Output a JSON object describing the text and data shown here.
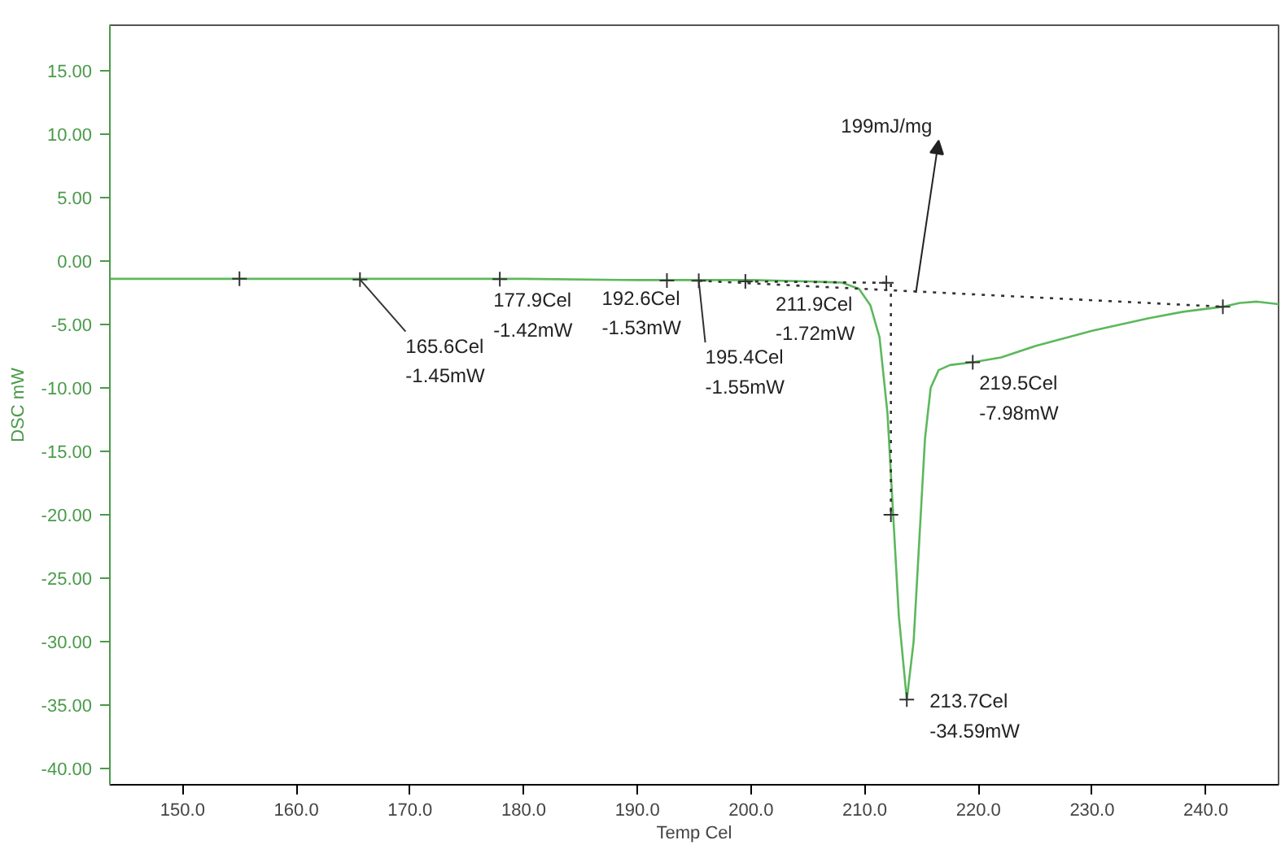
{
  "chart_data": {
    "type": "line",
    "xlabel": "Temp Cel",
    "ylabel": "DSC mW",
    "xlim": [
      143.6,
      246.4
    ],
    "ylim": [
      -41.3,
      18.6
    ],
    "xticks": [
      {
        "value": 150,
        "label": "150.0"
      },
      {
        "value": 160,
        "label": "160.0"
      },
      {
        "value": 170,
        "label": "170.0"
      },
      {
        "value": 180,
        "label": "180.0"
      },
      {
        "value": 190,
        "label": "190.0"
      },
      {
        "value": 200,
        "label": "200.0"
      },
      {
        "value": 210,
        "label": "210.0"
      },
      {
        "value": 220,
        "label": "220.0"
      },
      {
        "value": 230,
        "label": "230.0"
      },
      {
        "value": 240,
        "label": "240.0"
      }
    ],
    "yticks": [
      {
        "value": 15,
        "label": "15.00"
      },
      {
        "value": 10,
        "label": "10.00"
      },
      {
        "value": 5,
        "label": "5.00"
      },
      {
        "value": 0,
        "label": "0.00"
      },
      {
        "value": -5,
        "label": "-5.00"
      },
      {
        "value": -10,
        "label": "-10.00"
      },
      {
        "value": -15,
        "label": "-15.00"
      },
      {
        "value": -20,
        "label": "-20.00"
      },
      {
        "value": -25,
        "label": "-25.00"
      },
      {
        "value": -30,
        "label": "-30.00"
      },
      {
        "value": -35,
        "label": "-35.00"
      },
      {
        "value": -40,
        "label": "-40.00"
      }
    ],
    "grid": false,
    "series": [
      {
        "color": "#5cb85c",
        "x": [
          143.6,
          150,
          160,
          170,
          180,
          190,
          200,
          205,
          208,
          209.5,
          210.5,
          211.3,
          212,
          212.5,
          213,
          213.7,
          214.3,
          214.8,
          215.3,
          215.8,
          216.5,
          217.5,
          219.5,
          222,
          225,
          230,
          235,
          238,
          241.5,
          243,
          244.5,
          246.4
        ],
        "values": [
          -1.4,
          -1.4,
          -1.4,
          -1.4,
          -1.4,
          -1.5,
          -1.5,
          -1.6,
          -1.7,
          -2.2,
          -3.5,
          -6,
          -12,
          -20,
          -28,
          -34.59,
          -30,
          -22,
          -14,
          -10,
          -8.6,
          -8.2,
          -7.98,
          -7.6,
          -6.7,
          -5.5,
          -4.5,
          -4.0,
          -3.6,
          -3.3,
          -3.2,
          -3.4
        ]
      },
      {
        "type": "line",
        "color": "#333333",
        "line_style": "dotted",
        "x": [
          195.4,
          241.5
        ],
        "values": [
          -1.55,
          -3.6
        ]
      },
      {
        "type": "line",
        "color": "#333333",
        "line_style": "dotted",
        "x": [
          199.5,
          212.3,
          212.3
        ],
        "values": [
          -1.6,
          -1.72,
          -20
        ]
      },
      {
        "type": "scatter",
        "color": "#333333",
        "marker": "cross",
        "x": [
          155,
          165.6,
          177.9,
          192.6,
          195.4,
          199.5,
          211.9,
          212.3,
          213.7,
          219.5,
          241.5
        ],
        "values": [
          -1.4,
          -1.45,
          -1.42,
          -1.53,
          -1.55,
          -1.6,
          -1.72,
          -20,
          -34.59,
          -7.98,
          -3.6
        ]
      }
    ],
    "annotations": [
      {
        "text": "165.6Cel\n-1.45mW",
        "x": 165.6,
        "y": -1.45
      },
      {
        "text": "177.9Cel\n-1.42mW",
        "x": 177.9,
        "y": -1.42
      },
      {
        "text": "192.6Cel\n-1.53mW",
        "x": 192.6,
        "y": -1.53
      },
      {
        "text": "195.4Cel\n-1.55mW",
        "x": 195.4,
        "y": -1.55
      },
      {
        "text": "211.9Cel\n-1.72mW",
        "x": 211.9,
        "y": -1.72
      },
      {
        "text": "213.7Cel\n-34.59mW",
        "x": 213.7,
        "y": -34.59
      },
      {
        "text": "219.5Cel\n-7.98mW",
        "x": 219.5,
        "y": -7.98
      },
      {
        "text": "199mJ/mg",
        "x": 214.5,
        "y": -2.5
      }
    ]
  }
}
